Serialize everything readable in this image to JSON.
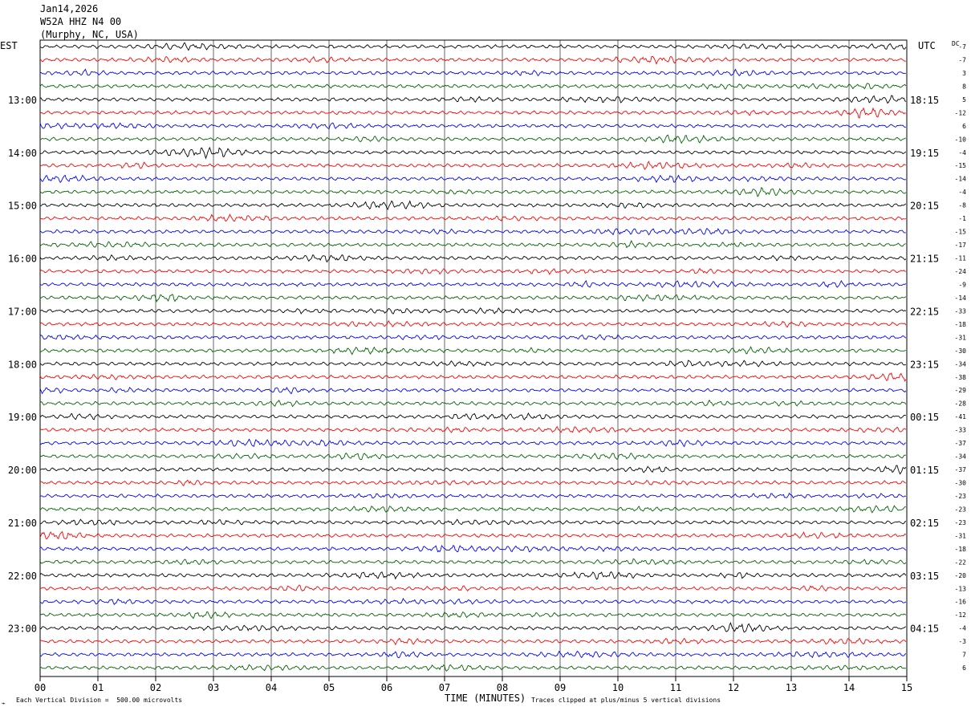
{
  "header": {
    "date": "Jan14,2026",
    "station": "W52A HHZ N4 00",
    "location": "(Murphy, NC, USA)"
  },
  "left_tz": "EST",
  "right_tz": "UTC",
  "dc_label": "DC",
  "footer": {
    "scale_note": "Each Vertical Division =  500.00 microvolts",
    "xlabel": "TIME (MINUTES)",
    "clip_note": "Traces clipped at plus/minus 5 vertical divisions"
  },
  "chart_data": {
    "type": "line",
    "title": "",
    "xlabel": "TIME (MINUTES)",
    "xlim": [
      0,
      15
    ],
    "x_ticks": [
      "00",
      "01",
      "02",
      "03",
      "04",
      "05",
      "06",
      "07",
      "08",
      "09",
      "10",
      "11",
      "12",
      "13",
      "14",
      "15"
    ],
    "trace_colors": [
      "#000000",
      "#ff0000",
      "#0000ff",
      "#006400"
    ],
    "left_hour_labels": [
      "13:00",
      "14:00",
      "15:00",
      "16:00",
      "17:00",
      "18:00",
      "19:00",
      "20:00",
      "21:00",
      "22:00",
      "23:00"
    ],
    "right_hour_labels": [
      "18:15",
      "19:15",
      "20:15",
      "21:15",
      "22:15",
      "23:15",
      "00:15",
      "01:15",
      "02:15",
      "03:15",
      "04:15"
    ],
    "dc_offsets": [
      -7,
      -7,
      3,
      8,
      5,
      -12,
      6,
      -10,
      -4,
      -15,
      -14,
      -4,
      -8,
      -1,
      -15,
      -17,
      -11,
      -24,
      -9,
      -14,
      -33,
      -18,
      -31,
      -30,
      -34,
      -38,
      -29,
      -28,
      -41,
      -33,
      -37,
      -34,
      -37,
      -30,
      -23,
      -23,
      -23,
      -31,
      -18,
      -22,
      -20,
      -13,
      -16,
      -12,
      -4,
      -3,
      7,
      6
    ],
    "grid": true
  }
}
